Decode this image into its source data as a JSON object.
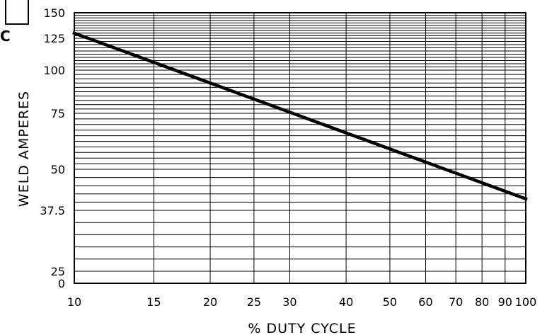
{
  "chart_data": {
    "type": "line",
    "xlabel": "% DUTY CYCLE",
    "ylabel": "WELD AMPERES",
    "x_scale": "log",
    "xlim": [
      10,
      100
    ],
    "x_ticks": [
      10,
      15,
      20,
      25,
      30,
      40,
      50,
      60,
      70,
      80,
      90,
      100
    ],
    "x_tick_labels": [
      "10",
      "15",
      "20",
      "25",
      "30",
      "40",
      "50",
      "60",
      "70",
      "80",
      "90",
      "100"
    ],
    "y_ticks": [
      0,
      25,
      37.5,
      50,
      75,
      100,
      125,
      150
    ],
    "y_tick_labels": [
      "0",
      "25",
      "37.5",
      "50",
      "75",
      "100",
      "125",
      "150"
    ],
    "grid": true,
    "series": [
      {
        "x": [
          10,
          100
        ],
        "y": [
          130,
          41
        ]
      }
    ],
    "fragments": [
      "C"
    ]
  }
}
